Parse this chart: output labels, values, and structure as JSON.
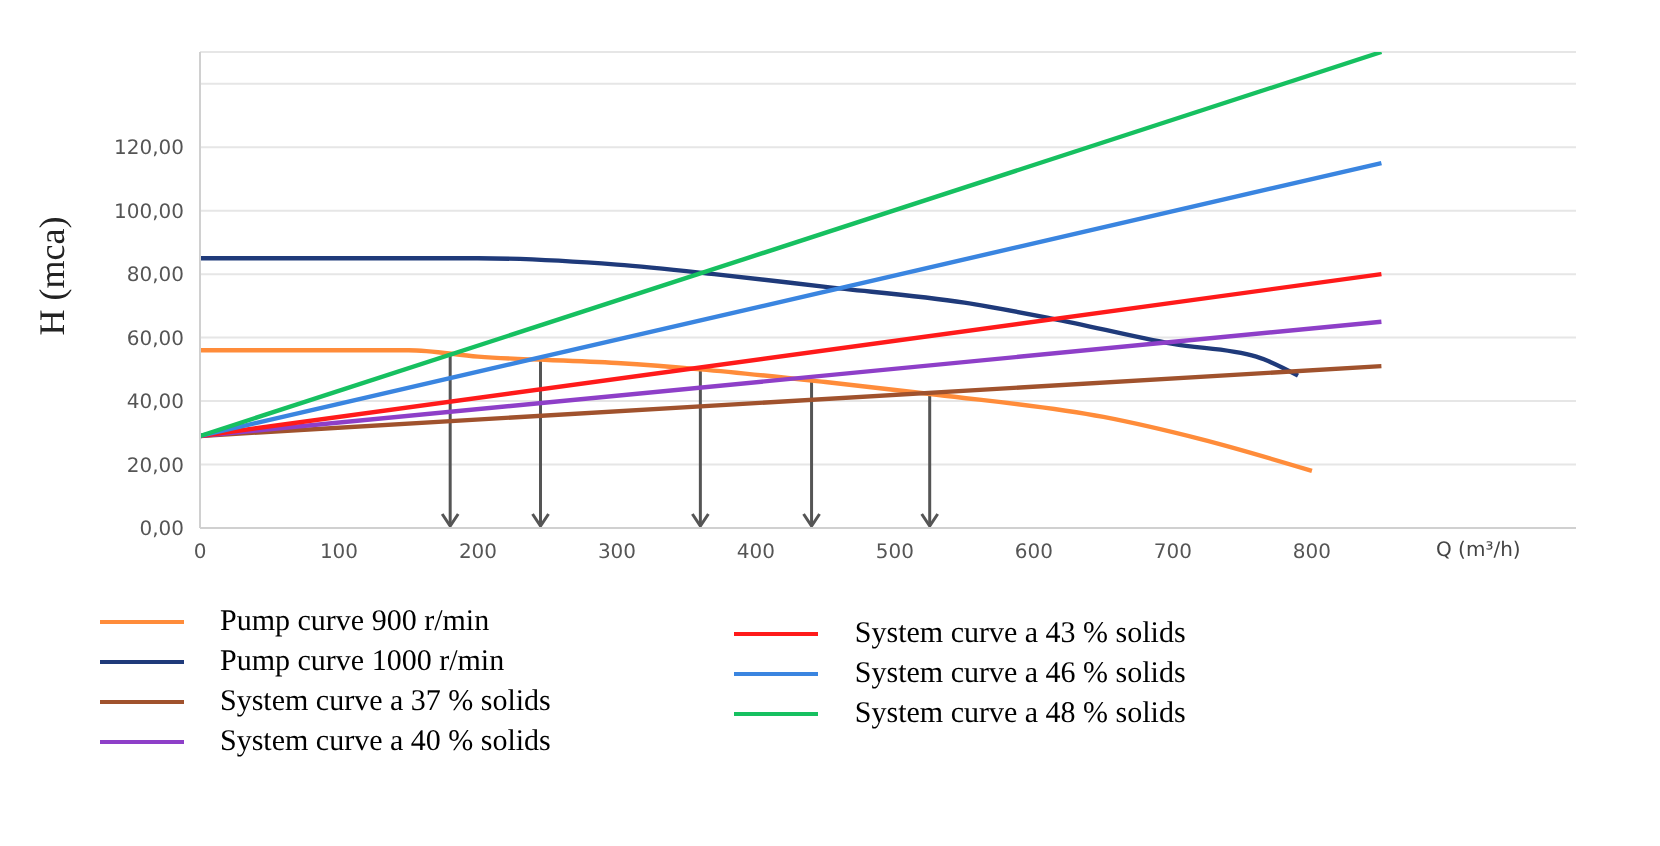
{
  "chart_data": {
    "type": "line",
    "xlabel": "Q (m³/h)",
    "ylabel": "H (mca)",
    "xlim": [
      0,
      990
    ],
    "xticks": [
      0,
      100,
      200,
      300,
      400,
      500,
      600,
      700,
      800
    ],
    "ylim": [
      0,
      150
    ],
    "yticks": [
      {
        "value": 0,
        "label": "0,00"
      },
      {
        "value": 20,
        "label": "20,00"
      },
      {
        "value": 40,
        "label": "40,00"
      },
      {
        "value": 60,
        "label": "60,00"
      },
      {
        "value": 80,
        "label": "80,00"
      },
      {
        "value": 100,
        "label": "100,00"
      },
      {
        "value": 120,
        "label": "120,00"
      },
      {
        "value": 140,
        "label": null
      }
    ],
    "grid": "y",
    "legend": "bottom",
    "marker": "none",
    "line_style": "solid",
    "series": [
      {
        "name": "Pump curve 900 r/min",
        "color": "#ff8c3a",
        "x": [
          0,
          150,
          200,
          300,
          360,
          450,
          530,
          650,
          720,
          800
        ],
        "values": [
          56,
          56,
          54,
          52,
          50,
          46,
          42,
          35,
          28,
          18
        ]
      },
      {
        "name": "Pump curve 1000 r/min",
        "color": "#1f3a7a",
        "x": [
          0,
          200,
          300,
          370,
          450,
          550,
          613,
          700,
          760,
          790
        ],
        "values": [
          85,
          85,
          83,
          80,
          76,
          71,
          66,
          58,
          54,
          48
        ]
      },
      {
        "name": "System curve a 37 % solids",
        "color": "#a0522d",
        "x": [
          0,
          850
        ],
        "values": [
          29,
          51
        ]
      },
      {
        "name": "System curve a 40 % solids",
        "color": "#8e3fc8",
        "x": [
          0,
          850
        ],
        "values": [
          29,
          65
        ]
      },
      {
        "name": "System curve a 43 % solids",
        "color": "#ff1a1a",
        "x": [
          0,
          850
        ],
        "values": [
          29,
          80
        ]
      },
      {
        "name": "System curve a 46 % solids",
        "color": "#3a85e0",
        "x": [
          0,
          850
        ],
        "values": [
          29,
          115
        ]
      },
      {
        "name": "System curve a 48 % solids",
        "color": "#16c060",
        "x": [
          0,
          850
        ],
        "values": [
          29,
          150
        ]
      }
    ],
    "ref_lines": [
      {
        "axis": "x",
        "value": 180,
        "color": "#555555"
      },
      {
        "axis": "x",
        "value": 245,
        "color": "#555555"
      },
      {
        "axis": "x",
        "value": 360,
        "color": "#555555"
      },
      {
        "axis": "x",
        "value": 440,
        "color": "#555555"
      },
      {
        "axis": "x",
        "value": 525,
        "color": "#555555"
      }
    ]
  }
}
